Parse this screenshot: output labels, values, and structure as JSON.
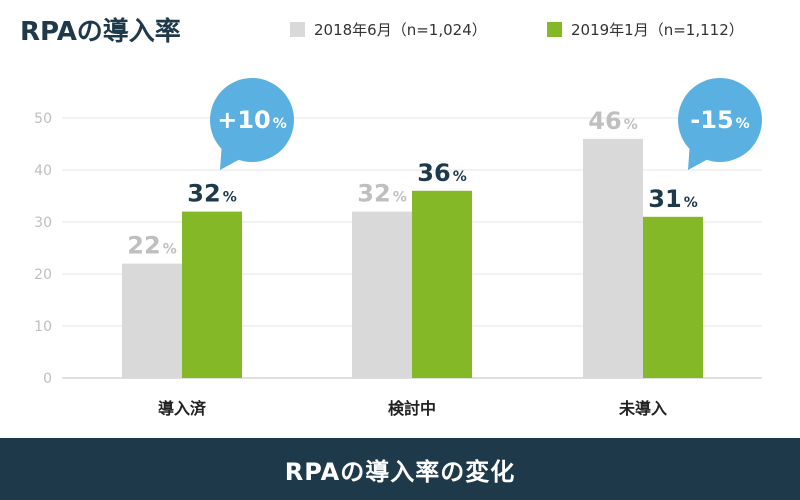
{
  "header": {
    "title": "RPAの導入率"
  },
  "footer": {
    "caption": "RPAの導入率の変化"
  },
  "colors": {
    "series_2018": "#d9d9d9",
    "series_2019": "#84b826",
    "bubble": "#5ab0e0",
    "banner": "#1e3a4a",
    "axis_text": "#bfbfbf",
    "label_dark": "#1e3a4a"
  },
  "chart_data": {
    "type": "bar",
    "title": "RPAの導入率",
    "categories": [
      "導入済",
      "検討中",
      "未導入"
    ],
    "series": [
      {
        "name": "2018年6月（n=1,024）",
        "values": [
          22,
          32,
          46
        ]
      },
      {
        "name": "2019年1月（n=1,112）",
        "values": [
          32,
          36,
          31
        ]
      }
    ],
    "ylim": [
      0,
      50
    ],
    "yticks": [
      0,
      10,
      20,
      30,
      40,
      50
    ],
    "grid": true,
    "legend_position": "top-right",
    "value_suffix": "%",
    "annotations": [
      {
        "category": "導入済",
        "text": "+10",
        "suffix": "%"
      },
      {
        "category": "未導入",
        "text": "-15",
        "suffix": "%"
      }
    ]
  }
}
